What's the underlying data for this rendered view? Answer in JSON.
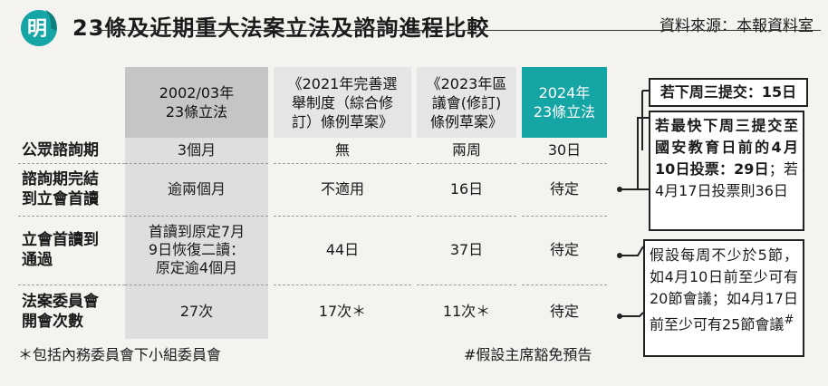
{
  "brand": {
    "logo_text": "明"
  },
  "title": "23條及近期重大法案立法及諮詢進程比較",
  "source": "資料來源：本報資料室",
  "columns": [
    {
      "label": "2002/03年23條立法"
    },
    {
      "label": "《2021年完善選舉制度（綜合修訂）條例草案》"
    },
    {
      "label": "《2023年區議會(修訂)條例草案》"
    },
    {
      "label": "2024年23條立法"
    }
  ],
  "columns_display": [
    [
      "2002/03年",
      "23條立法"
    ],
    [
      "《2021年完善選",
      "舉制度（綜合修",
      "訂）條例草案》"
    ],
    [
      "《2023年區",
      "議會(修訂)",
      "條例草案》"
    ],
    [
      "2024年",
      "23條立法"
    ]
  ],
  "rows": [
    {
      "label": [
        "公眾諮詢期"
      ],
      "cells": [
        [
          "3個月"
        ],
        [
          "無"
        ],
        [
          "兩周"
        ],
        [
          "30日"
        ]
      ]
    },
    {
      "label": [
        "諮詢期完結",
        "到立會首讀"
      ],
      "cells": [
        [
          "逾兩個月"
        ],
        [
          "不適用"
        ],
        [
          "16日"
        ],
        [
          "待定"
        ]
      ]
    },
    {
      "label": [
        "立會首讀到",
        "通過"
      ],
      "cells": [
        [
          "首讀到原定7月",
          "9日恢復二讀：",
          "原定逾4個月"
        ],
        [
          "44日"
        ],
        [
          "37日"
        ],
        [
          "待定"
        ]
      ]
    },
    {
      "label": [
        "法案委員會",
        "開會次數"
      ],
      "cells": [
        [
          "27次"
        ],
        [
          "17次＊"
        ],
        [
          "11次＊"
        ],
        [
          "待定"
        ]
      ]
    }
  ],
  "notes": {
    "note1": "若下周三提交：15日",
    "note2_bold": "若最快下周三提交至國安教育日前的4月10日投票：29日",
    "note2_rest": "；若4月17日投票則36日",
    "note3_a": "假設每周不少於5節，如4月10日前至少可有20節會議；如4月17日前至少可有25節會議",
    "note3_mark": "#"
  },
  "footnotes": {
    "asterisk": "＊包括內務委員會下小組委員會",
    "hash": "#假設主席豁免預告"
  },
  "colors": {
    "accent": "#16a5a5",
    "header_gray": "#c5c5c5",
    "header_light": "#e5e5e5",
    "col1_bg": "#dedede"
  }
}
